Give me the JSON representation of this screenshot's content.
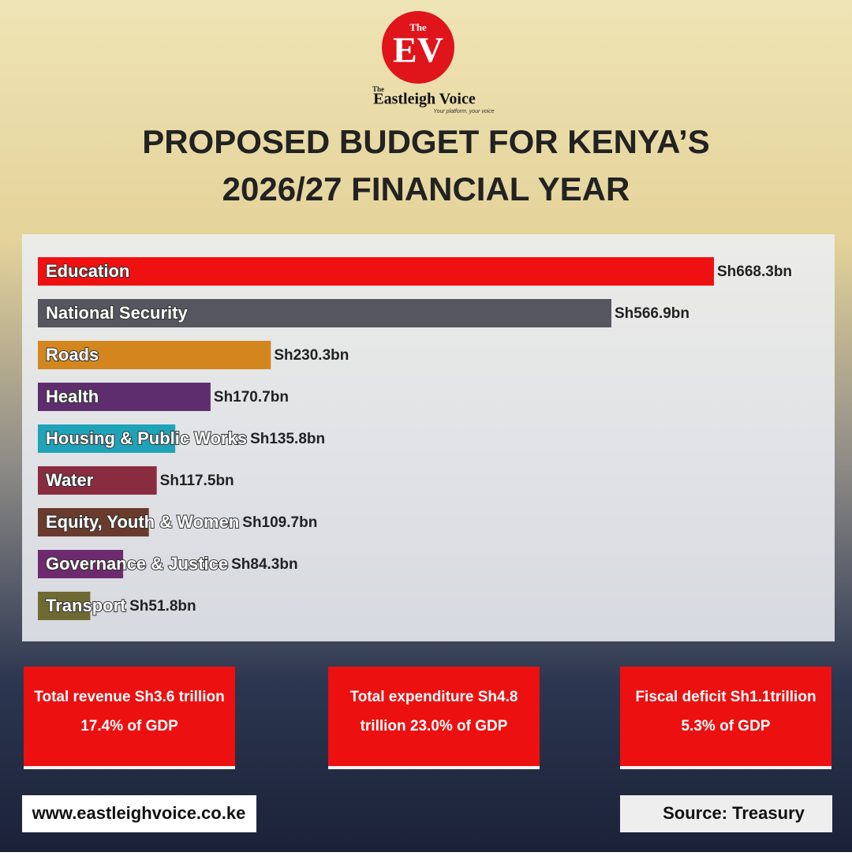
{
  "brand": {
    "small": "The",
    "mark": "EV",
    "name": "Eastleigh Voice",
    "name_prefix": "The",
    "tagline": "Your platform, your voice"
  },
  "chart_data": {
    "type": "bar",
    "orientation": "horizontal",
    "title": [
      "PROPOSED BUDGET FOR KENYA’S",
      "2026/27 FINANCIAL YEAR"
    ],
    "categories": [
      "Education",
      "National Security",
      "Roads",
      "Health",
      "Housing & Public Works",
      "Water",
      "Equity, Youth & Women",
      "Governance & Justice",
      "Transport"
    ],
    "values": [
      668.3,
      566.9,
      230.3,
      170.7,
      135.8,
      117.5,
      109.7,
      84.3,
      51.8
    ],
    "value_labels": [
      "Sh668.3bn",
      "Sh566.9bn",
      "Sh230.3bn",
      "Sh170.7bn",
      "Sh135.8bn",
      "Sh117.5bn",
      "Sh109.7bn",
      "Sh84.3bn",
      "Sh51.8bn"
    ],
    "colors": [
      "#ef1111",
      "#55565f",
      "#d3861e",
      "#5e2d6e",
      "#1fa3b8",
      "#8a2c40",
      "#6a3a2c",
      "#6e2a6e",
      "#6f6a32"
    ]
  },
  "boxes": [
    [
      "Total revenue Sh3.6 trillion",
      "17.4% of GDP"
    ],
    [
      "Total expenditure Sh4.8",
      "trillion 23.0% of GDP"
    ],
    [
      "Fiscal deficit Sh1.1trillion",
      "5.3% of GDP"
    ]
  ],
  "footer": {
    "website": "www.eastleighvoice.co.ke",
    "source": "Source: Treasury"
  }
}
